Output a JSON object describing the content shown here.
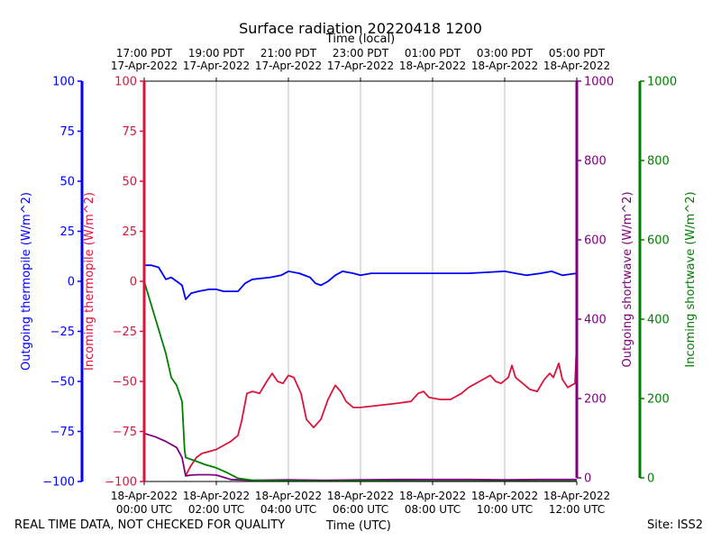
{
  "chart_data": {
    "type": "line",
    "title": "Surface radiation 20220418 1200",
    "xlabel_top": "Time (local)",
    "xlabel_bottom": "Time (UTC)",
    "x_bottom_ticks": [
      {
        "hour": 0,
        "line1": "18-Apr-2022",
        "line2": "00:00 UTC"
      },
      {
        "hour": 2,
        "line1": "18-Apr-2022",
        "line2": "02:00 UTC"
      },
      {
        "hour": 4,
        "line1": "18-Apr-2022",
        "line2": "04:00 UTC"
      },
      {
        "hour": 6,
        "line1": "18-Apr-2022",
        "line2": "06:00 UTC"
      },
      {
        "hour": 8,
        "line1": "18-Apr-2022",
        "line2": "08:00 UTC"
      },
      {
        "hour": 10,
        "line1": "18-Apr-2022",
        "line2": "10:00 UTC"
      },
      {
        "hour": 12,
        "line1": "18-Apr-2022",
        "line2": "12:00 UTC"
      }
    ],
    "x_top_ticks": [
      {
        "hour": 0,
        "line1": "17:00 PDT",
        "line2": "17-Apr-2022"
      },
      {
        "hour": 2,
        "line1": "19:00 PDT",
        "line2": "17-Apr-2022"
      },
      {
        "hour": 4,
        "line1": "21:00 PDT",
        "line2": "17-Apr-2022"
      },
      {
        "hour": 6,
        "line1": "23:00 PDT",
        "line2": "17-Apr-2022"
      },
      {
        "hour": 8,
        "line1": "01:00 PDT",
        "line2": "18-Apr-2022"
      },
      {
        "hour": 10,
        "line1": "03:00 PDT",
        "line2": "18-Apr-2022"
      },
      {
        "hour": 12,
        "line1": "05:00 PDT",
        "line2": "18-Apr-2022"
      }
    ],
    "xlim_hours": [
      0,
      12
    ],
    "grid": "vertical",
    "axes": {
      "outgoing_thermopile": {
        "label": "Outgoing thermopile (W/m^2)",
        "color": "#0000ff",
        "ylim": [
          -100,
          100
        ],
        "ticks": [
          -100,
          -75,
          -50,
          -25,
          0,
          25,
          50,
          75,
          100
        ]
      },
      "incoming_thermopile": {
        "label": "Incoming thermopile (W/m^2)",
        "color": "#dc143c",
        "ylim": [
          -100,
          100
        ],
        "ticks": [
          -100,
          -75,
          -50,
          -25,
          0,
          25,
          50,
          75,
          100
        ]
      },
      "outgoing_shortwave": {
        "label": "Outgoing shortwave (W/m^2)",
        "color": "#800080",
        "ylim": [
          0,
          1000
        ],
        "ticks": [
          0,
          200,
          400,
          600,
          800,
          1000
        ]
      },
      "incoming_shortwave": {
        "label": "Incoming shortwave (W/m^2)",
        "color": "#008000",
        "ylim": [
          0,
          1000
        ],
        "ticks": [
          0,
          200,
          400,
          600,
          800,
          1000
        ]
      }
    },
    "series": [
      {
        "name": "Outgoing thermopile",
        "axis": "outgoing_thermopile",
        "color": "#0000ff",
        "points": [
          [
            0,
            8
          ],
          [
            0.2,
            8
          ],
          [
            0.4,
            7
          ],
          [
            0.5,
            4
          ],
          [
            0.6,
            1
          ],
          [
            0.75,
            2
          ],
          [
            0.9,
            0
          ],
          [
            1.05,
            -2
          ],
          [
            1.15,
            -9
          ],
          [
            1.3,
            -6
          ],
          [
            1.5,
            -5
          ],
          [
            1.8,
            -4
          ],
          [
            2.0,
            -4
          ],
          [
            2.2,
            -5
          ],
          [
            2.4,
            -5
          ],
          [
            2.6,
            -5
          ],
          [
            2.8,
            -1
          ],
          [
            3.0,
            1
          ],
          [
            3.5,
            2
          ],
          [
            3.8,
            3
          ],
          [
            4.0,
            5
          ],
          [
            4.3,
            4
          ],
          [
            4.6,
            2
          ],
          [
            4.75,
            -1
          ],
          [
            4.9,
            -2
          ],
          [
            5.1,
            0
          ],
          [
            5.3,
            3
          ],
          [
            5.5,
            5
          ],
          [
            5.8,
            4
          ],
          [
            6.0,
            3
          ],
          [
            6.3,
            4
          ],
          [
            7.0,
            4
          ],
          [
            8.0,
            4
          ],
          [
            9.0,
            4
          ],
          [
            10.0,
            5
          ],
          [
            10.3,
            4
          ],
          [
            10.6,
            3
          ],
          [
            11.0,
            4
          ],
          [
            11.3,
            5
          ],
          [
            11.6,
            3
          ],
          [
            12.0,
            4
          ]
        ]
      },
      {
        "name": "Incoming thermopile",
        "axis": "incoming_thermopile",
        "color": "#dc143c",
        "points": [
          [
            1.15,
            -97
          ],
          [
            1.3,
            -92
          ],
          [
            1.45,
            -88
          ],
          [
            1.6,
            -86
          ],
          [
            1.8,
            -85
          ],
          [
            2.0,
            -84
          ],
          [
            2.2,
            -82
          ],
          [
            2.4,
            -80
          ],
          [
            2.6,
            -77
          ],
          [
            2.7,
            -70
          ],
          [
            2.85,
            -56
          ],
          [
            3.0,
            -55
          ],
          [
            3.2,
            -56
          ],
          [
            3.4,
            -50
          ],
          [
            3.55,
            -46
          ],
          [
            3.7,
            -50
          ],
          [
            3.85,
            -51
          ],
          [
            4.0,
            -47
          ],
          [
            4.15,
            -48
          ],
          [
            4.35,
            -56
          ],
          [
            4.5,
            -69
          ],
          [
            4.7,
            -73
          ],
          [
            4.9,
            -69
          ],
          [
            5.1,
            -59
          ],
          [
            5.3,
            -52
          ],
          [
            5.45,
            -55
          ],
          [
            5.6,
            -60
          ],
          [
            5.8,
            -63
          ],
          [
            6.0,
            -63
          ],
          [
            6.5,
            -62
          ],
          [
            7.0,
            -61
          ],
          [
            7.4,
            -60
          ],
          [
            7.6,
            -56
          ],
          [
            7.75,
            -55
          ],
          [
            7.9,
            -58
          ],
          [
            8.2,
            -59
          ],
          [
            8.5,
            -59
          ],
          [
            8.8,
            -56
          ],
          [
            9.0,
            -53
          ],
          [
            9.3,
            -50
          ],
          [
            9.6,
            -47
          ],
          [
            9.75,
            -50
          ],
          [
            9.9,
            -51
          ],
          [
            10.1,
            -48
          ],
          [
            10.2,
            -42
          ],
          [
            10.3,
            -48
          ],
          [
            10.5,
            -51
          ],
          [
            10.7,
            -54
          ],
          [
            10.9,
            -55
          ],
          [
            11.1,
            -49
          ],
          [
            11.25,
            -46
          ],
          [
            11.35,
            -48
          ],
          [
            11.5,
            -41
          ],
          [
            11.6,
            -49
          ],
          [
            11.75,
            -53
          ],
          [
            11.95,
            -51
          ],
          [
            12.0,
            -30
          ]
        ]
      },
      {
        "name": "Outgoing shortwave",
        "axis": "outgoing_shortwave",
        "color": "#800080",
        "points": [
          [
            0,
            120
          ],
          [
            0.3,
            112
          ],
          [
            0.6,
            100
          ],
          [
            0.9,
            85
          ],
          [
            1.05,
            60
          ],
          [
            1.15,
            14
          ],
          [
            1.3,
            16
          ],
          [
            1.5,
            17
          ],
          [
            1.8,
            17
          ],
          [
            2.0,
            16
          ],
          [
            2.4,
            5
          ],
          [
            3.0,
            3
          ],
          [
            4.0,
            4
          ],
          [
            5.0,
            3
          ],
          [
            6.0,
            4
          ],
          [
            7.0,
            5
          ],
          [
            8.0,
            5
          ],
          [
            9.0,
            5
          ],
          [
            10.0,
            4
          ],
          [
            11.0,
            5
          ],
          [
            12.0,
            5
          ]
        ]
      },
      {
        "name": "Incoming shortwave",
        "axis": "incoming_shortwave",
        "color": "#008000",
        "points": [
          [
            0,
            500
          ],
          [
            0.2,
            440
          ],
          [
            0.4,
            380
          ],
          [
            0.6,
            320
          ],
          [
            0.75,
            260
          ],
          [
            0.9,
            240
          ],
          [
            1.05,
            200
          ],
          [
            1.12,
            80
          ],
          [
            1.15,
            60
          ],
          [
            1.4,
            52
          ],
          [
            1.7,
            42
          ],
          [
            2.0,
            34
          ],
          [
            2.3,
            22
          ],
          [
            2.6,
            8
          ],
          [
            3.0,
            3
          ],
          [
            4.0,
            2
          ],
          [
            5.0,
            1
          ],
          [
            6.0,
            2
          ],
          [
            8.0,
            1
          ],
          [
            10.0,
            1
          ],
          [
            12.0,
            1
          ]
        ]
      }
    ]
  },
  "footer": {
    "left": "REAL TIME DATA, NOT CHECKED FOR QUALITY",
    "center": "Time (UTC)",
    "right": "Site: ISS2"
  }
}
